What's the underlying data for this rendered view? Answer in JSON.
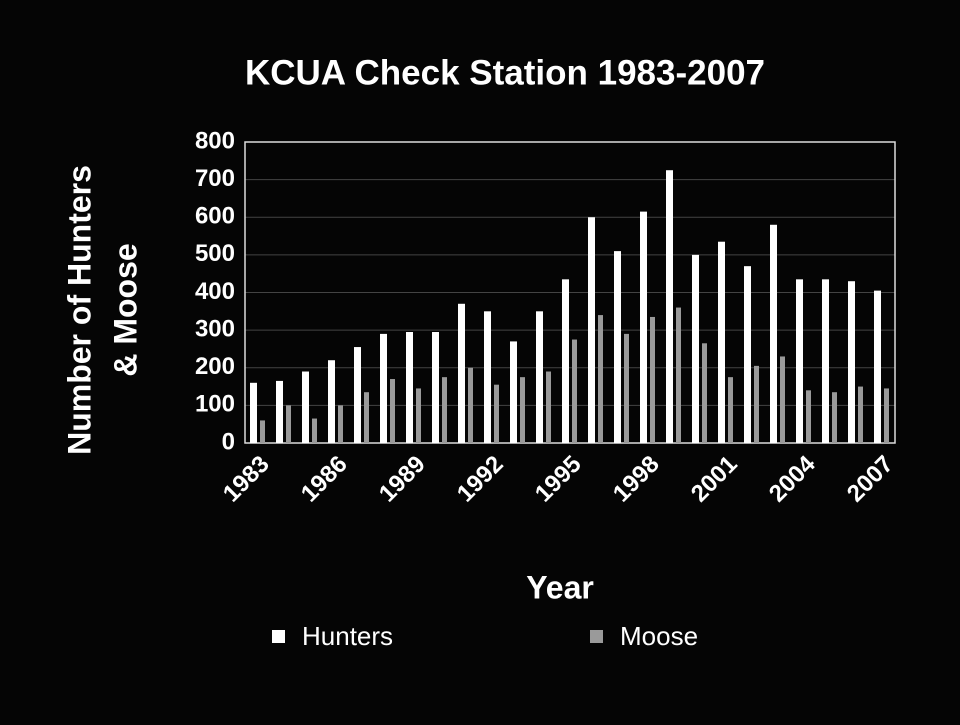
{
  "chart_data": {
    "type": "bar",
    "title": "KCUA Check Station 1983-2007",
    "ylabel": [
      "Number of Hunters",
      "& Moose"
    ],
    "xlabel": "Year",
    "categories": [
      "1983",
      null,
      null,
      "1986",
      null,
      null,
      "1989",
      null,
      null,
      "1992",
      null,
      null,
      "1995",
      null,
      null,
      "1998",
      null,
      null,
      "2001",
      null,
      null,
      "2004",
      null,
      null,
      "2007"
    ],
    "series": [
      {
        "name": "Hunters",
        "color": "#ffffff",
        "values": [
          160,
          165,
          190,
          220,
          255,
          290,
          295,
          295,
          370,
          350,
          270,
          350,
          435,
          600,
          510,
          615,
          725,
          500,
          535,
          470,
          580,
          435,
          435,
          430,
          405
        ]
      },
      {
        "name": "Moose",
        "color": "#9a9a9a",
        "values": [
          60,
          100,
          65,
          100,
          135,
          170,
          145,
          175,
          200,
          155,
          175,
          190,
          275,
          340,
          290,
          335,
          360,
          265,
          175,
          205,
          230,
          140,
          135,
          150,
          145
        ]
      }
    ],
    "ylim": [
      0,
      800
    ],
    "yticks": [
      0,
      100,
      200,
      300,
      400,
      500,
      600,
      700,
      800
    ],
    "grid": true,
    "legend": "bottom"
  }
}
